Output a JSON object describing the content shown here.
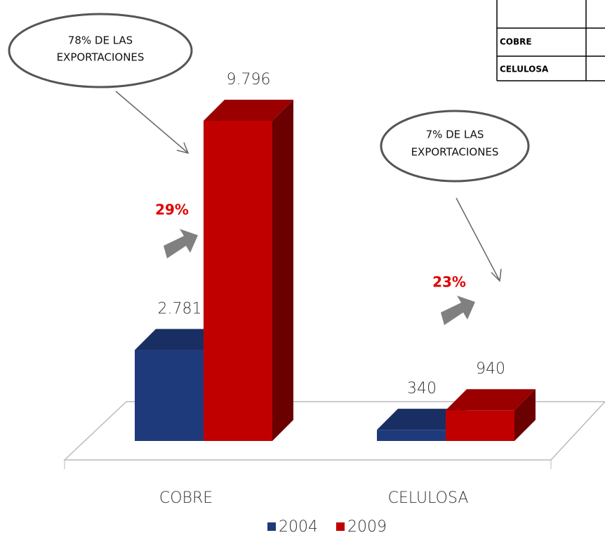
{
  "chart_data": {
    "type": "bar3d",
    "categories": [
      "COBRE",
      "CELULOSA"
    ],
    "series": [
      {
        "name": "2004",
        "color": "#1f3a7a",
        "values": [
          2781,
          340
        ],
        "value_labels": [
          "2.781",
          "340"
        ]
      },
      {
        "name": "2009",
        "color": "#c00000",
        "values": [
          9796,
          940
        ],
        "value_labels": [
          "9.796",
          "940"
        ]
      }
    ],
    "annotations": {
      "cobre_share": [
        "78% DE LAS",
        "EXPORTACIONES"
      ],
      "celulosa_share": [
        "7% DE LAS",
        "EXPORTACIONES"
      ],
      "cobre_growth": "29%",
      "celulosa_growth": "23%"
    },
    "table": {
      "rows": [
        "COBRE",
        "CELULOSA"
      ]
    }
  }
}
